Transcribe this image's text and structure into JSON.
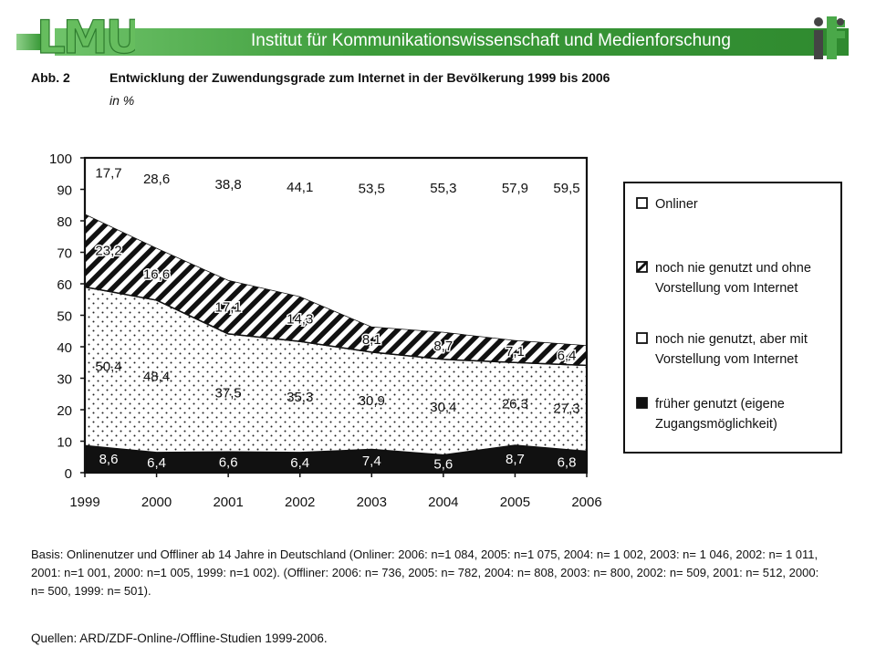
{
  "header": {
    "logo_text": "LMU",
    "logo_right": "ifkw",
    "title": "Institut für Kommunikationswissenschaft und Medienforschung"
  },
  "figure": {
    "label": "Abb. 2",
    "title": "Entwicklung der Zuwendungsgrade zum Internet in der Bevölkerung 1999 bis 2006",
    "subtitle": "in %"
  },
  "chart_data": {
    "type": "area",
    "stacked": true,
    "x": [
      "1999",
      "2000",
      "2001",
      "2002",
      "2003",
      "2004",
      "2005",
      "2006"
    ],
    "ylim": [
      0,
      100
    ],
    "yticks": [
      "0",
      "10",
      "20",
      "30",
      "40",
      "50",
      "60",
      "70",
      "80",
      "90",
      "100"
    ],
    "series": [
      {
        "name": "früher genutzt (eigene Zugangsmöglichkeit)",
        "pattern": "solid-black",
        "values": [
          8.6,
          6.4,
          6.6,
          6.4,
          7.4,
          5.6,
          8.7,
          6.8
        ],
        "labels": [
          "8,6",
          "6,4",
          "6,6",
          "6,4",
          "7,4",
          "5,6",
          "8,7",
          "6,8"
        ]
      },
      {
        "name": "noch nie genutzt, aber mit Vorstellung vom Internet",
        "pattern": "dots",
        "values": [
          50.4,
          48.4,
          37.5,
          35.3,
          30.9,
          30.4,
          26.3,
          27.3
        ],
        "labels": [
          "50,4",
          "48,4",
          "37,5",
          "35,3",
          "30,9",
          "30,4",
          "26,3",
          "27,3"
        ]
      },
      {
        "name": "noch nie genutzt und ohne Vorstellung vom Internet",
        "pattern": "diagonal-stripes",
        "values": [
          23.2,
          16.6,
          17.1,
          14.3,
          8.1,
          8.7,
          7.1,
          6.4
        ],
        "labels": [
          "23,2",
          "16,6",
          "17,1",
          "14,3",
          "8,1",
          "8,7",
          "7,1",
          "6,4"
        ]
      },
      {
        "name": "Onliner",
        "pattern": "white",
        "values": [
          17.7,
          28.6,
          38.8,
          44.1,
          53.5,
          55.3,
          57.9,
          59.5
        ],
        "labels": [
          "17,7",
          "28,6",
          "38,8",
          "44,1",
          "53,5",
          "55,3",
          "57,9",
          "59,5"
        ]
      }
    ],
    "legend": [
      {
        "name": "Onliner",
        "pattern": "white"
      },
      {
        "name": "noch nie genutzt und ohne Vorstellung vom Internet",
        "pattern": "diagonal-stripes"
      },
      {
        "name": "noch nie genutzt, aber mit Vorstellung vom Internet",
        "pattern": "dots"
      },
      {
        "name": "früher genutzt (eigene Zugangsmöglichkeit)",
        "pattern": "solid-black"
      }
    ],
    "legend_placement": "right"
  },
  "footnote": "Basis: Onlinenutzer und Offliner ab 14 Jahre in Deutschland (Onliner: 2006: n=1 084, 2005: n=1 075, 2004: n= 1 002, 2003: n= 1 046, 2002: n= 1 011, 2001: n=1 001, 2000: n=1 005, 1999: n=1 002). (Offliner: 2006: n= 736, 2005: n= 782, 2004: n= 808, 2003: n= 800, 2002: n= 509, 2001: n= 512, 2000: n= 500, 1999: n= 501).",
  "sources": "Quellen: ARD/ZDF-Online-/Offline-Studien 1999-2006.",
  "colors": {
    "header_green": "#3c9b3a",
    "logo_green": "#6fc36a",
    "ink": "#111111"
  }
}
